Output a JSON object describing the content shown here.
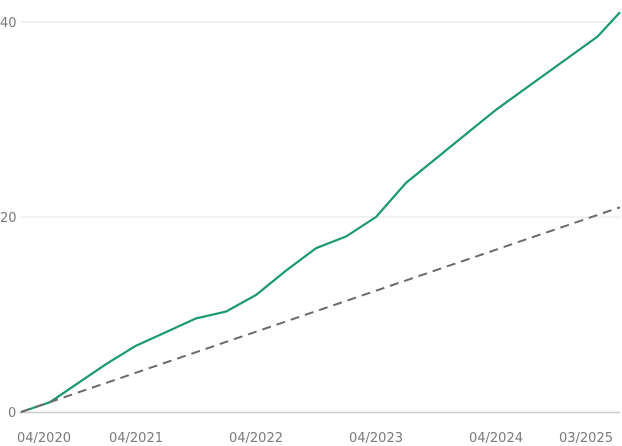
{
  "chart_data": {
    "type": "line",
    "title": "",
    "xlabel": "",
    "ylabel": "",
    "ylim": [
      0,
      45
    ],
    "x_ticks": [
      "04/2020",
      "04/2021",
      "04/2022",
      "04/2023",
      "04/2024",
      "03/2025"
    ],
    "y_ticks": [
      0,
      20,
      40
    ],
    "grid": "horizontal",
    "legend": "none",
    "colors": {
      "series_1": "#1a9a6c",
      "series_2": "#6b6b6b",
      "gridline": "#e6e6e6",
      "axis": "#cccccc"
    },
    "series": [
      {
        "style": "solid",
        "x": [
          "04/2020",
          "07/2020",
          "10/2020",
          "01/2021",
          "04/2021",
          "07/2021",
          "10/2021",
          "01/2022",
          "04/2022",
          "07/2022",
          "10/2022",
          "01/2023",
          "04/2023",
          "07/2023",
          "10/2023",
          "01/2024",
          "04/2024",
          "07/2024",
          "10/2024",
          "01/2025",
          "03/2025"
        ],
        "values": [
          0.0,
          1.0,
          3.0,
          5.0,
          6.8,
          8.2,
          9.6,
          10.3,
          12.0,
          14.5,
          16.8,
          18.0,
          20.0,
          23.5,
          26.0,
          28.5,
          31.0,
          33.5,
          36.0,
          38.5,
          41.0
        ]
      },
      {
        "style": "dashed",
        "x": [
          "04/2020",
          "03/2025"
        ],
        "values": [
          0.0,
          21.0
        ]
      }
    ]
  }
}
